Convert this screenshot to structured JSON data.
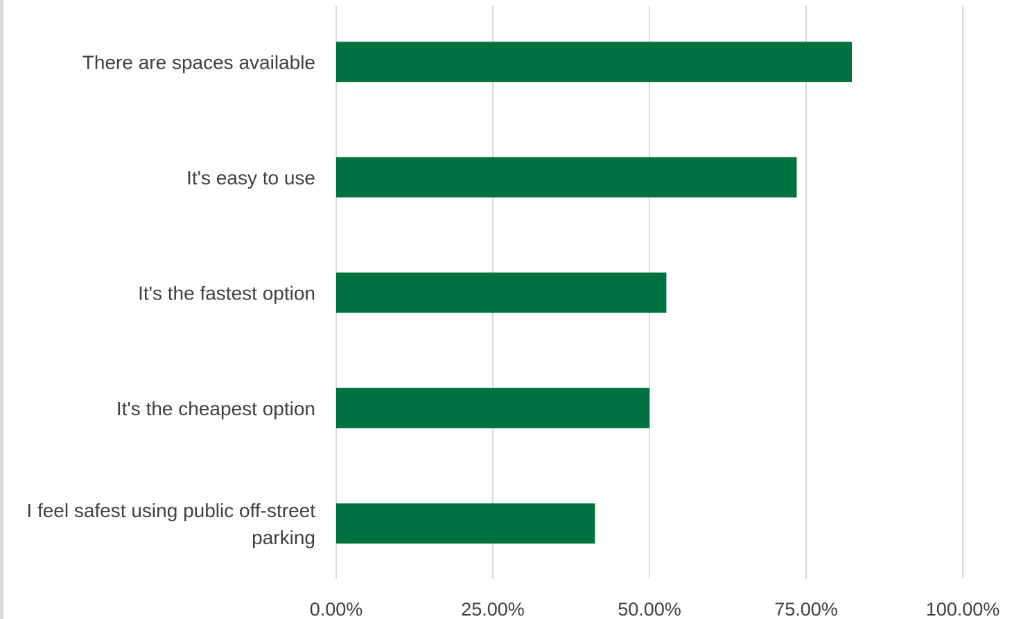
{
  "chart_data": {
    "type": "bar",
    "orientation": "horizontal",
    "title": "",
    "xlabel": "",
    "ylabel": "",
    "categories": [
      [
        "There are spaces available"
      ],
      [
        "It's easy to use"
      ],
      [
        "It's the fastest option"
      ],
      [
        "It's the cheapest option"
      ],
      [
        "I feel safest using public off-street",
        "parking"
      ]
    ],
    "values": [
      82.3,
      73.5,
      52.7,
      50.0,
      41.3
    ],
    "xlim": [
      0,
      100
    ],
    "ticks": [
      0,
      25,
      50,
      75,
      100
    ],
    "tick_labels": [
      "0.00%",
      "25.00%",
      "50.00%",
      "75.00%",
      "100.00%"
    ],
    "grid": true,
    "legend": "none",
    "bar_color": "#007140",
    "grid_color": "#d9d9d9"
  }
}
